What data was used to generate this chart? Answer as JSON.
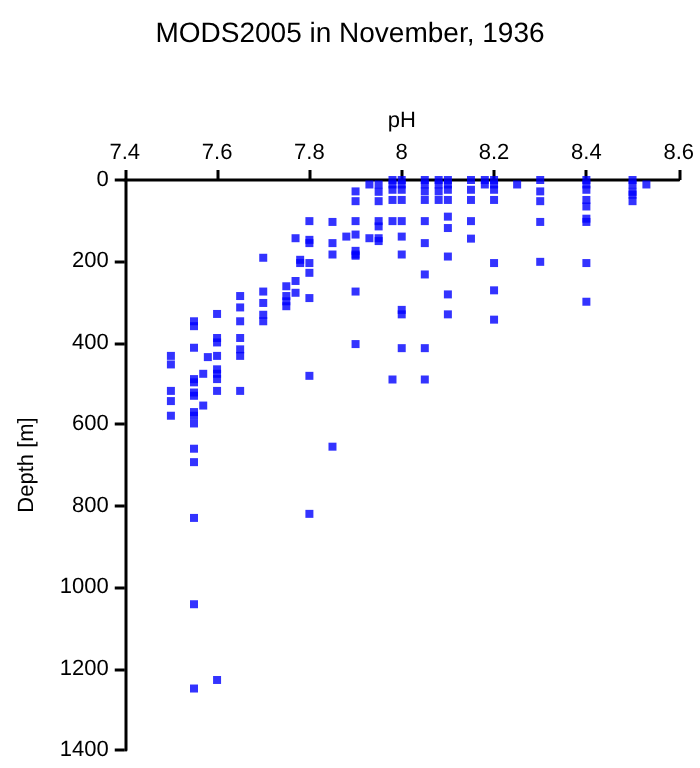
{
  "chart_data": {
    "type": "scatter",
    "title": "MODS2005 in November, 1936",
    "xlabel": "pH",
    "ylabel": "Depth [m]",
    "x": [
      7.5,
      7.5,
      7.5,
      7.5,
      7.5,
      7.55,
      7.55,
      7.55,
      7.55,
      7.55,
      7.55,
      7.55,
      7.55,
      7.55,
      7.55,
      7.55,
      7.55,
      7.55,
      7.55,
      7.55,
      7.57,
      7.57,
      7.58,
      7.6,
      7.6,
      7.6,
      7.6,
      7.6,
      7.6,
      7.6,
      7.6,
      7.6,
      7.65,
      7.65,
      7.65,
      7.65,
      7.65,
      7.65,
      7.65,
      7.7,
      7.7,
      7.7,
      7.7,
      7.7,
      7.75,
      7.75,
      7.75,
      7.75,
      7.77,
      7.77,
      7.77,
      7.78,
      7.78,
      7.8,
      7.8,
      7.8,
      7.8,
      7.8,
      7.8,
      7.8,
      7.8,
      7.85,
      7.85,
      7.85,
      7.85,
      7.88,
      7.9,
      7.9,
      7.9,
      7.9,
      7.9,
      7.9,
      7.9,
      7.9,
      7.9,
      7.93,
      7.93,
      7.95,
      7.95,
      7.95,
      7.95,
      7.95,
      7.95,
      7.95,
      7.98,
      7.98,
      7.98,
      7.98,
      7.98,
      7.98,
      8.0,
      8.0,
      8.0,
      8.0,
      8.0,
      8.0,
      8.0,
      8.0,
      8.0,
      8.0,
      8.05,
      8.05,
      8.05,
      8.05,
      8.05,
      8.05,
      8.05,
      8.05,
      8.05,
      8.08,
      8.08,
      8.08,
      8.08,
      8.1,
      8.1,
      8.1,
      8.1,
      8.1,
      8.1,
      8.1,
      8.1,
      8.1,
      8.15,
      8.15,
      8.15,
      8.15,
      8.15,
      8.18,
      8.18,
      8.2,
      8.2,
      8.2,
      8.2,
      8.2,
      8.2,
      8.2,
      8.25,
      8.3,
      8.3,
      8.3,
      8.3,
      8.3,
      8.4,
      8.4,
      8.4,
      8.4,
      8.4,
      8.4,
      8.4,
      8.4,
      8.4,
      8.5,
      8.5,
      8.5,
      8.5,
      8.5,
      8.53
    ],
    "values": [
      432,
      453,
      518,
      543,
      579,
      347,
      359,
      412,
      489,
      497,
      522,
      530,
      570,
      579,
      598,
      660,
      693,
      830,
      1042,
      1249,
      476,
      554,
      435,
      329,
      388,
      399,
      432,
      465,
      476,
      489,
      518,
      1228,
      285,
      313,
      347,
      388,
      416,
      432,
      518,
      191,
      274,
      302,
      331,
      347,
      261,
      285,
      298,
      310,
      248,
      143,
      277,
      196,
      204,
      101,
      147,
      155,
      204,
      228,
      290,
      481,
      820,
      103,
      155,
      183,
      655,
      139,
      28,
      52,
      101,
      134,
      174,
      183,
      186,
      274,
      403,
      11,
      143,
      11,
      29,
      52,
      101,
      114,
      143,
      150,
      0,
      11,
      24,
      49,
      101,
      490,
      0,
      11,
      24,
      49,
      101,
      139,
      183,
      319,
      330,
      413,
      0,
      11,
      28,
      49,
      101,
      155,
      232,
      413,
      490,
      0,
      11,
      28,
      49,
      0,
      11,
      24,
      49,
      90,
      118,
      188,
      281,
      330,
      0,
      24,
      49,
      101,
      144,
      0,
      11,
      0,
      11,
      24,
      49,
      204,
      271,
      343,
      11,
      0,
      28,
      52,
      103,
      201,
      0,
      11,
      24,
      49,
      65,
      95,
      103,
      204,
      299,
      0,
      11,
      29,
      36,
      52,
      11
    ],
    "color": "#0000ff",
    "marker": "square",
    "xlim": [
      7.4,
      8.6
    ],
    "xticks": [
      7.4,
      7.6,
      7.8,
      8,
      8.2,
      8.4,
      8.6
    ],
    "ylim": [
      1400,
      0
    ],
    "yticks": [
      0,
      200,
      400,
      600,
      800,
      1000,
      1200,
      1400
    ],
    "grid": false
  }
}
